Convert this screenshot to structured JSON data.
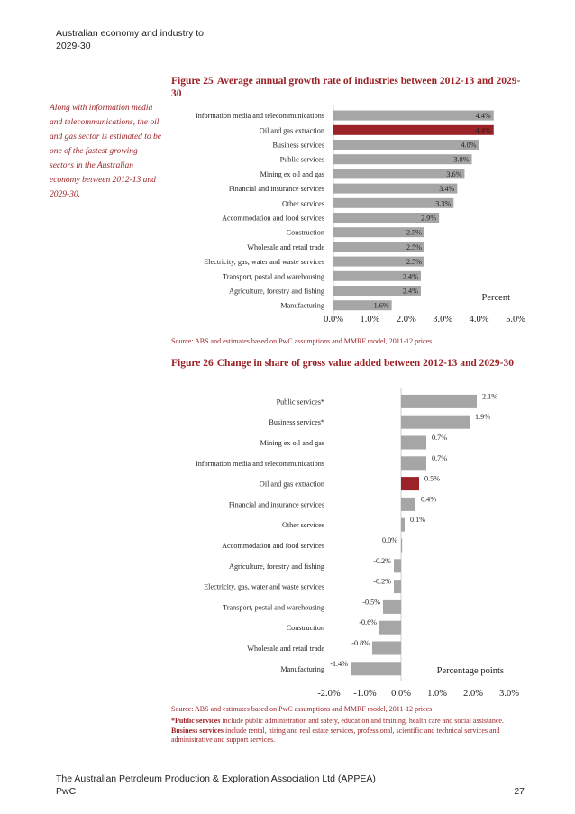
{
  "header": {
    "line1": "Australian economy and industry to",
    "line2": "2029-30"
  },
  "sidebar": {
    "text": "Along with information media and telecommunications, the oil and gas sector is estimated to be one of the fastest growing sectors in the Australian economy between 2012-13 and 2029-30."
  },
  "colors": {
    "bar": "#a6a6a6",
    "highlight": "#9b2226",
    "accent_text": "#9b2226"
  },
  "figure25": {
    "number": "Figure 25",
    "title": "Average annual growth rate of industries between 2012-13 and 2029-30",
    "source": "Source: ABS and estimates based on PwC assumptions and MMRF model, 2011-12 prices"
  },
  "figure26": {
    "number": "Figure 26",
    "title": "Change in share of gross value added between 2012-13 and 2029-30",
    "source": "Source: ABS and estimates based on PwC assumptions and MMRF model, 2011-12 prices",
    "note_ps_label": "*Public services",
    "note_ps_text": " include public administration and safety, education and training, health care and social assistance. ",
    "note_bs_label": "Business services",
    "note_bs_text": " include rental, hiring and real estate services, professional, scientific and technical services and administrative and support services."
  },
  "chart_data": [
    {
      "type": "bar",
      "orientation": "horizontal",
      "title": "Average annual growth rate of industries between 2012-13 and 2029-30",
      "xlabel": "Percent",
      "xlim": [
        0,
        5
      ],
      "ticks": [
        "0.0%",
        "1.0%",
        "2.0%",
        "3.0%",
        "4.0%",
        "5.0%"
      ],
      "highlight": "Oil and gas extraction",
      "categories": [
        "Information media and telecommunications",
        "Oil and gas extraction",
        "Business services",
        "Public services",
        "Mining ex oil and gas",
        "Financial and insurance services",
        "Other services",
        "Accommodation and food services",
        "Construction",
        "Wholesale and retail trade",
        "Electricity, gas, water and waste services",
        "Transport, postal and warehousing",
        "Agriculture, forestry and fishing",
        "Manufacturing"
      ],
      "values": [
        4.4,
        4.4,
        4.0,
        3.8,
        3.6,
        3.4,
        3.3,
        2.9,
        2.5,
        2.5,
        2.5,
        2.4,
        2.4,
        1.6
      ],
      "labels": [
        "4.4%",
        "4.4%",
        "4.0%",
        "3.8%",
        "3.6%",
        "3.4%",
        "3.3%",
        "2.9%",
        "2.5%",
        "2.5%",
        "2.5%",
        "2.4%",
        "2.4%",
        "1.6%"
      ]
    },
    {
      "type": "bar",
      "orientation": "horizontal",
      "title": "Change in share of gross value added between 2012-13 and 2029-30",
      "xlabel": "Percentage points",
      "xlim": [
        -2,
        3
      ],
      "ticks": [
        "-2.0%",
        "-1.0%",
        "0.0%",
        "1.0%",
        "2.0%",
        "3.0%"
      ],
      "highlight": "Oil and gas extraction",
      "categories": [
        "Public services*",
        "Business services*",
        "Mining ex oil and gas",
        "Information media and telecommunications",
        "Oil and gas extraction",
        "Financial and insurance services",
        "Other services",
        "Accommodation and food services",
        "Agriculture, forestry and fishing",
        "Electricity, gas, water and waste services",
        "Transport, postal and warehousing",
        "Construction",
        "Wholesale and retail trade",
        "Manufacturing"
      ],
      "values": [
        2.1,
        1.9,
        0.7,
        0.7,
        0.5,
        0.4,
        0.1,
        0.0,
        -0.2,
        -0.2,
        -0.5,
        -0.6,
        -0.8,
        -1.4
      ],
      "labels": [
        "2.1%",
        "1.9%",
        "0.7%",
        "0.7%",
        "0.5%",
        "0.4%",
        "0.1%",
        "0.0%",
        "-0.2%",
        "-0.2%",
        "-0.5%",
        "-0.6%",
        "-0.8%",
        "-1.4%"
      ]
    }
  ],
  "footer": {
    "line1": "The Australian Petroleum Production & Exploration Association Ltd (APPEA)",
    "line2": "PwC",
    "page": "27"
  }
}
